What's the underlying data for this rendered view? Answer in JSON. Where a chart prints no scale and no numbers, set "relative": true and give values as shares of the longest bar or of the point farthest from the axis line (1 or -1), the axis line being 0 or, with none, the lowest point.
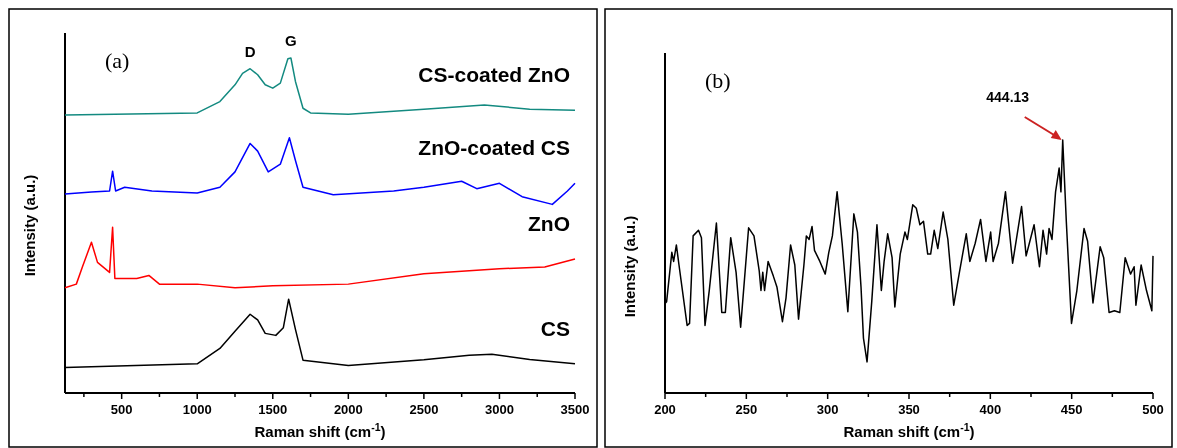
{
  "chart_data": [
    {
      "type": "line",
      "relative": true,
      "xlabel": "Raman shift (cm$^{-1}$)",
      "ylabel": "Intensity (a.u.)",
      "xlim": [
        125,
        3500
      ],
      "xticks": [
        {
          "value": 250,
          "label": null
        },
        500,
        {
          "value": 750,
          "label": null
        },
        1000,
        {
          "value": 1250,
          "label": null
        },
        1500,
        {
          "value": 1750,
          "label": null
        },
        2000,
        {
          "value": 2250,
          "label": null
        },
        2500,
        {
          "value": 2750,
          "label": null
        },
        3000,
        {
          "value": 3250,
          "label": null
        },
        3500
      ],
      "annotations": [
        "(a)",
        {
          "text": "D",
          "x": 1350,
          "y": 0.968
        },
        {
          "text": "G",
          "x": 1620,
          "y": 1.0
        }
      ],
      "series": [
        {
          "name": "CS-coated ZnO",
          "color": "#138a80",
          "x": [
            125,
            1000,
            1150,
            1250,
            1300,
            1350,
            1400,
            1450,
            1500,
            1550,
            1600,
            1620,
            1650,
            1700,
            1750,
            2000,
            2500,
            2900,
            3200,
            3500
          ],
          "values": [
            0.83,
            0.836,
            0.87,
            0.92,
            0.954,
            0.968,
            0.95,
            0.92,
            0.91,
            0.925,
            0.998,
            1.0,
            0.93,
            0.85,
            0.836,
            0.832,
            0.847,
            0.86,
            0.847,
            0.844
          ]
        },
        {
          "name": "ZnO-coated CS",
          "color": "#0000ff",
          "x": [
            125,
            300,
            420,
            440,
            460,
            520,
            700,
            1000,
            1150,
            1250,
            1350,
            1400,
            1470,
            1550,
            1610,
            1650,
            1700,
            1900,
            2300,
            2500,
            2750,
            2850,
            3000,
            3150,
            3350,
            3450,
            3500
          ],
          "values": [
            0.594,
            0.6,
            0.603,
            0.662,
            0.603,
            0.614,
            0.603,
            0.597,
            0.614,
            0.66,
            0.745,
            0.722,
            0.66,
            0.683,
            0.762,
            0.694,
            0.614,
            0.592,
            0.603,
            0.614,
            0.632,
            0.61,
            0.626,
            0.586,
            0.563,
            0.603,
            0.626
          ]
        },
        {
          "name": "ZnO",
          "color": "#ff0000",
          "x": [
            125,
            200,
            240,
            300,
            340,
            420,
            440,
            455,
            600,
            680,
            750,
            1000,
            1250,
            1500,
            2000,
            2500,
            3000,
            3300,
            3500
          ],
          "values": [
            0.314,
            0.325,
            0.376,
            0.45,
            0.39,
            0.36,
            0.495,
            0.342,
            0.342,
            0.351,
            0.325,
            0.325,
            0.314,
            0.32,
            0.325,
            0.356,
            0.371,
            0.376,
            0.4
          ]
        },
        {
          "name": "CS",
          "color": "#000000",
          "x": [
            125,
            1000,
            1150,
            1250,
            1350,
            1400,
            1450,
            1520,
            1570,
            1605,
            1650,
            1700,
            2000,
            2500,
            2800,
            2950,
            3200,
            3500
          ],
          "values": [
            0.076,
            0.087,
            0.133,
            0.184,
            0.235,
            0.218,
            0.178,
            0.172,
            0.195,
            0.28,
            0.19,
            0.098,
            0.082,
            0.099,
            0.113,
            0.116,
            0.1,
            0.087
          ]
        }
      ]
    },
    {
      "type": "line",
      "relative": true,
      "xlabel": "Raman shift (cm$^{-1}$)",
      "ylabel": "Intensity (a.u.)",
      "xlim": [
        200,
        500
      ],
      "xticks": [
        200,
        {
          "value": 225,
          "label": null
        },
        250,
        {
          "value": 275,
          "label": null
        },
        300,
        {
          "value": 325,
          "label": null
        },
        350,
        {
          "value": 375,
          "label": null
        },
        400,
        {
          "value": 425,
          "label": null
        },
        450,
        {
          "value": 475,
          "label": null
        },
        500
      ],
      "annotations": [
        "(b)",
        {
          "text": "444.13",
          "x": 444.5,
          "y": 1.0
        }
      ],
      "series": [
        {
          "color": "#000000",
          "x": [
            200,
            201,
            204.2,
            205.3,
            207,
            208.6,
            213.6,
            215.1,
            217.3,
            220.6,
            222.4,
            224.6,
            227.2,
            231.6,
            234.9,
            237.1,
            240.4,
            243.7,
            246.5,
            251.4,
            254.7,
            257.9,
            259,
            260.1,
            261.2,
            263.4,
            266.6,
            268.8,
            272.2,
            274.4,
            277.2,
            279.8,
            282.1,
            285.4,
            286.9,
            288.6,
            290.4,
            291.9,
            295.2,
            298.5,
            300.7,
            302.9,
            305.8,
            308.9,
            312.4,
            316.1,
            318.3,
            320.5,
            322,
            324.2,
            327.1,
            330.3,
            333,
            334.7,
            336.9,
            339.6,
            341.3,
            344.6,
            347.5,
            349,
            352.3,
            354.5,
            356.7,
            358.9,
            361.5,
            363.3,
            365.5,
            367.7,
            371,
            373.9,
            377.5,
            380.8,
            385.2,
            387.4,
            390.7,
            394,
            397.3,
            400.2,
            401.7,
            405,
            409.3,
            413.7,
            419.2,
            422,
            426.9,
            430.2,
            432.4,
            434.6,
            436.1,
            437.9,
            440.1,
            442.3,
            443.4,
            444.5,
            446.7,
            449.9,
            453.2,
            457.6,
            459.8,
            463.1,
            467.5,
            469.7,
            473,
            476.3,
            479.6,
            482.9,
            486.2,
            488.4,
            489.5,
            492.7,
            496,
            499.3,
            500
          ],
          "values": [
            0.354,
            0.361,
            0.556,
            0.52,
            0.585,
            0.506,
            0.267,
            0.275,
            0.621,
            0.643,
            0.614,
            0.267,
            0.405,
            0.672,
            0.318,
            0.318,
            0.614,
            0.477,
            0.26,
            0.653,
            0.621,
            0.484,
            0.405,
            0.477,
            0.405,
            0.52,
            0.462,
            0.419,
            0.282,
            0.376,
            0.585,
            0.506,
            0.292,
            0.506,
            0.621,
            0.607,
            0.658,
            0.564,
            0.52,
            0.47,
            0.556,
            0.621,
            0.795,
            0.592,
            0.321,
            0.708,
            0.636,
            0.419,
            0.217,
            0.123,
            0.361,
            0.665,
            0.405,
            0.52,
            0.629,
            0.535,
            0.34,
            0.549,
            0.636,
            0.607,
            0.744,
            0.73,
            0.665,
            0.679,
            0.549,
            0.549,
            0.643,
            0.571,
            0.715,
            0.607,
            0.347,
            0.47,
            0.629,
            0.52,
            0.592,
            0.686,
            0.52,
            0.636,
            0.52,
            0.592,
            0.795,
            0.513,
            0.737,
            0.542,
            0.665,
            0.499,
            0.643,
            0.549,
            0.65,
            0.607,
            0.795,
            0.889,
            0.795,
            1.0,
            0.679,
            0.275,
            0.405,
            0.65,
            0.6,
            0.356,
            0.578,
            0.535,
            0.318,
            0.325,
            0.318,
            0.535,
            0.47,
            0.499,
            0.347,
            0.506,
            0.405,
            0.325,
            0.542
          ]
        }
      ]
    }
  ]
}
